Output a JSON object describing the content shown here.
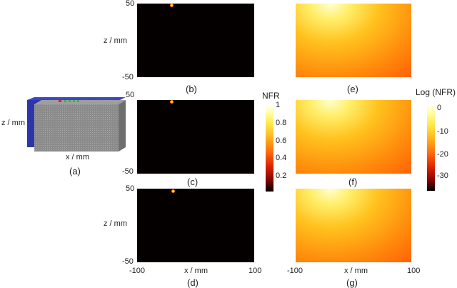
{
  "panel_labels": {
    "a": "(a)",
    "b": "(b)",
    "c": "(c)",
    "d": "(d)",
    "e": "(e)",
    "f": "(f)",
    "g": "(g)"
  },
  "axis": {
    "z_label": "z / mm",
    "x_label": "x / mm",
    "z_top": "50",
    "z_bottom": "-50",
    "x_left": "-100",
    "x_right": "100"
  },
  "model": {
    "z_label": "z / mm",
    "x_label": "x / mm"
  },
  "colorbar_linear": {
    "title": "NFR",
    "ticks": [
      "1",
      "0.8",
      "0.6",
      "0.4",
      "0.2"
    ]
  },
  "colorbar_log": {
    "title": "Log (NFR)",
    "ticks": [
      "0",
      "-10",
      "-20",
      "-30"
    ]
  },
  "colors": {
    "dark_map": "#050000",
    "bright": "#ffffd2",
    "deep_red": "#c51200",
    "board_blue": "#2a35a8",
    "board_grey": "#8a8a8a"
  }
}
